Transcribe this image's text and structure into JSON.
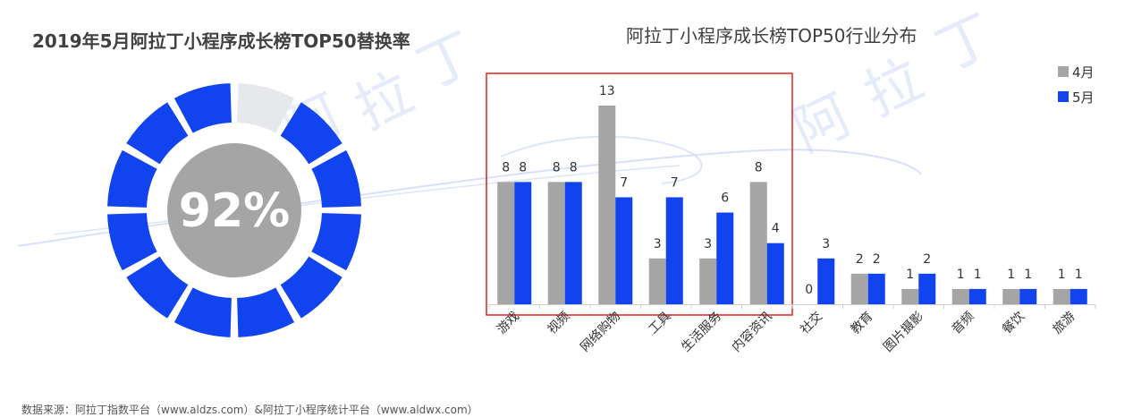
{
  "title_left": "2019年5月阿拉丁小程序成长榜TOP50替换率",
  "donut": {
    "label": "92%",
    "value": 92,
    "segments": 12,
    "colors": {
      "filled": "#1144ee",
      "empty": "#e7e8ec",
      "center": "#a5a5a5"
    }
  },
  "title_right": "阿拉丁小程序成长榜TOP50行业分布",
  "legend": [
    {
      "name": "4月",
      "color": "#a5a5a5"
    },
    {
      "name": "5月",
      "color": "#1144ee"
    }
  ],
  "source": "数据来源：阿拉丁指数平台（www.aldzs.com）&阿拉丁小程序统计平台（www.aldwx.com）",
  "watermark": [
    "阿",
    "拉",
    "丁"
  ],
  "chart_data": {
    "type": "bar",
    "categories": [
      "游戏",
      "视频",
      "网络购物",
      "工具",
      "生活服务",
      "内容资讯",
      "社交",
      "教育",
      "图片摄影",
      "音频",
      "餐饮",
      "旅游"
    ],
    "series": [
      {
        "name": "4月",
        "values": [
          8,
          8,
          13,
          3,
          3,
          8,
          0,
          2,
          1,
          1,
          1,
          1
        ]
      },
      {
        "name": "5月",
        "values": [
          8,
          8,
          7,
          7,
          6,
          4,
          3,
          2,
          2,
          1,
          1,
          1
        ]
      }
    ],
    "ylim": [
      0,
      13
    ],
    "highlight_first": 6,
    "colors": [
      "#a5a5a5",
      "#1144ee"
    ],
    "highlight_color": "#e02020"
  }
}
